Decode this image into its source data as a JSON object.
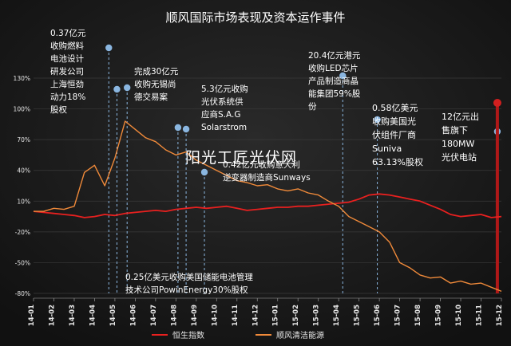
{
  "chart_data": {
    "type": "line",
    "title": "顺风国际市场表现及资本运作事件",
    "yticks": [
      "130%",
      "100%",
      "70%",
      "40%",
      "10%",
      "-20%",
      "-50%",
      "-80%"
    ],
    "ylim": [
      -80,
      130
    ],
    "xticks": [
      "14-01",
      "14-02",
      "14-03",
      "14-04",
      "14-05",
      "14-06",
      "14-07",
      "14-08",
      "14-09",
      "14-10",
      "14-11",
      "14-12",
      "15-01",
      "15-02",
      "15-03",
      "15-04",
      "15-05",
      "15-06",
      "15-07",
      "15-08",
      "15-09",
      "15-10",
      "15-11",
      "15-12"
    ],
    "series": [
      {
        "name": "恒生指数",
        "color": "#e8201f",
        "x": [
          0,
          0.5,
          1,
          1.5,
          2,
          2.5,
          3,
          3.5,
          4,
          4.5,
          5,
          5.5,
          6,
          6.5,
          7,
          7.5,
          8,
          8.5,
          9,
          9.5,
          10,
          10.5,
          11,
          11.5,
          12,
          12.5,
          13,
          13.5,
          14,
          14.5,
          15,
          15.5,
          16,
          16.5,
          17,
          17.5,
          18,
          18.5,
          19,
          19.5,
          20,
          20.5,
          21,
          21.5,
          22,
          22.5,
          23
        ],
        "values": [
          0,
          -1,
          -2,
          -3,
          -4,
          -6,
          -5,
          -3,
          -4,
          -2,
          -1,
          0,
          1,
          0,
          2,
          3,
          4,
          3,
          4,
          5,
          3,
          1,
          2,
          3,
          4,
          4,
          5,
          5,
          6,
          7,
          8,
          9,
          12,
          16,
          17,
          16,
          14,
          12,
          10,
          6,
          2,
          -3,
          -5,
          -4,
          -3,
          -6,
          -5
        ]
      },
      {
        "name": "顺风清洁能源",
        "color": "#f08a3a",
        "x": [
          0,
          0.5,
          1,
          1.5,
          2,
          2.5,
          3,
          3.5,
          4,
          4.5,
          5,
          5.5,
          6,
          6.5,
          7,
          7.5,
          8,
          8.5,
          9,
          9.5,
          10,
          10.5,
          11,
          11.5,
          12,
          12.5,
          13,
          13.5,
          14,
          14.5,
          15,
          15.5,
          16,
          16.5,
          17,
          17.5,
          18,
          18.5,
          19,
          19.5,
          20,
          20.5,
          21,
          21.5,
          22,
          22.5,
          23
        ],
        "values": [
          0,
          0,
          3,
          2,
          5,
          38,
          45,
          25,
          52,
          88,
          80,
          72,
          68,
          60,
          55,
          58,
          50,
          45,
          40,
          35,
          30,
          28,
          25,
          26,
          22,
          20,
          22,
          18,
          16,
          10,
          5,
          -5,
          -10,
          -15,
          -20,
          -30,
          -50,
          -55,
          -62,
          -65,
          -64,
          -70,
          -68,
          -71,
          -70,
          -74,
          -78
        ]
      }
    ],
    "events": [
      {
        "x": 3.7,
        "label": "0.37亿元\n收购燃料\n电池设计\n研发公司\n上海恒劲\n动力18%\n股权"
      },
      {
        "x": 4.1,
        "label": "0.25亿美元收购美国储能电池管理\n技术公司PowinEnergy30%股权"
      },
      {
        "x": 4.6,
        "label": "完成30亿元\n收购无锡尚\n德交易案"
      },
      {
        "x": 7.1,
        "label": "5.3亿元收购\n光伏系统供\n应商S.A.G\nSolarstrom"
      },
      {
        "x": 7.5,
        "label": ""
      },
      {
        "x": 8.4,
        "label": "0.42亿元收购意大利\n逆变器制造商Sunways"
      },
      {
        "x": 15.2,
        "label": "20.4亿元港元\n收购LED芯片\n产品制造商晶\n能集团59%股\n份"
      },
      {
        "x": 16.9,
        "label": "0.58亿美元\n收购美国光\n伏组件厂商\nSuniva\n63.13%股权"
      },
      {
        "x": 22.8,
        "label": "12亿元出\n售旗下\n180MW\n光伏电站"
      }
    ],
    "watermark": "阳光工匠光伏网",
    "legend_position": "bottom"
  }
}
